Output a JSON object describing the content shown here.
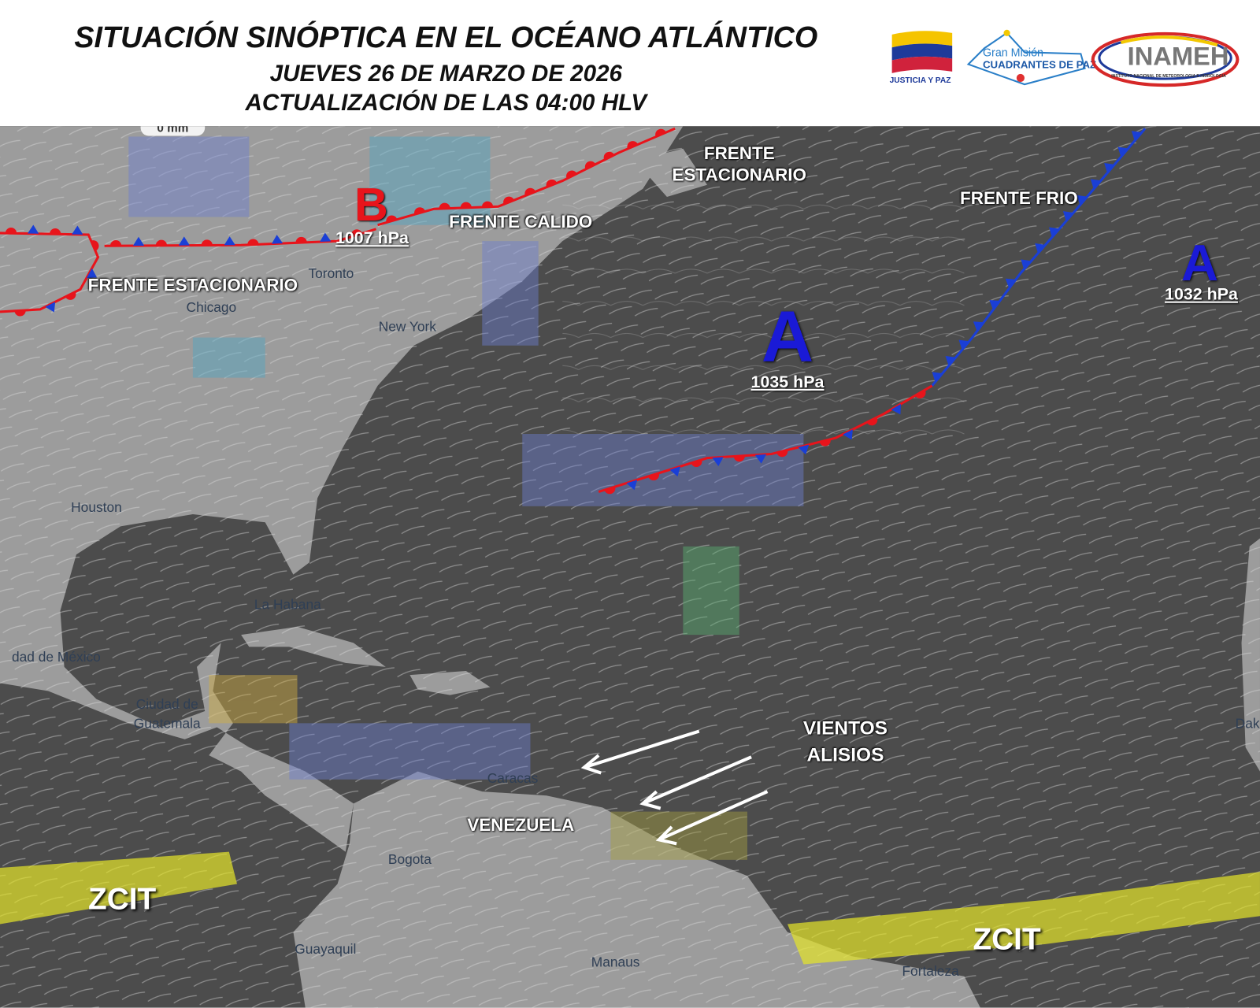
{
  "header": {
    "title": "SITUACIÓN SINÓPTICA EN EL OCÉANO ATLÁNTICO",
    "date": "JUEVES 26 DE MARZO DE 2026",
    "update": "ACTUALIZACIÓN DE LAS 04:00 HLV"
  },
  "logos": {
    "justicia": "JUSTICIA Y PAZ",
    "gran_mision": "Gran Misión",
    "cuadrantes": "CUADRANTES DE PAZ",
    "inameh": "INAMEH",
    "inameh_full": "INSTITUTO NACIONAL DE METEOROLOGIA E HIDROLOGIA"
  },
  "map": {
    "scale_pill": "0 mm",
    "pressure_systems": [
      {
        "letter": "B",
        "type": "low",
        "pressure": "1007 hPa",
        "color": "#e8141b"
      },
      {
        "letter": "A",
        "type": "high",
        "pressure": "1035 hPa",
        "color": "#1a1ad6"
      },
      {
        "letter": "A",
        "type": "high",
        "pressure": "1032 hPa",
        "color": "#1a1ad6"
      }
    ],
    "labels": {
      "frente_calido": "FRENTE CALIDO",
      "frente_estacionario_top_1": "FRENTE",
      "frente_estacionario_top_2": "ESTACIONARIO",
      "frente_frio": "FRENTE FRIO",
      "frente_estacionario_left": "FRENTE ESTACIONARIO",
      "vientos_1": "VIENTOS",
      "vientos_2": "ALISIOS",
      "venezuela": "VENEZUELA",
      "zcit_west": "ZCIT",
      "zcit_east": "ZCIT"
    },
    "cities": [
      "Toronto",
      "Chicago",
      "New York",
      "Houston",
      "La Habana",
      "dad de México",
      "Ciudad de",
      "Guatemala",
      "Caracas",
      "Bogota",
      "Guayaquil",
      "Manaus",
      "Fortaleza",
      "Dakar"
    ],
    "colors": {
      "warm_front": "#e8141b",
      "cold_front": "#1a3fd6",
      "zcit": "#e6e62a",
      "ocean": "#4c4c4c",
      "land": "#9c9c9c"
    }
  }
}
